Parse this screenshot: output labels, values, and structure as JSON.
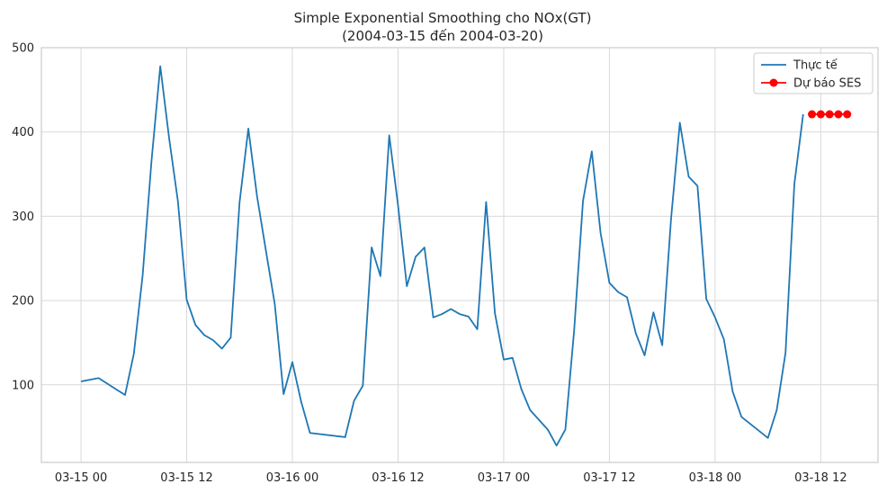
{
  "chart_data": {
    "type": "line",
    "title": "Simple Exponential Smoothing cho NOx(GT)",
    "subtitle": "(2004-03-15 đến 2004-03-20)",
    "xlabel": "",
    "ylabel": "",
    "grid": true,
    "legend_position": "top-right",
    "x_ticks": [
      "03-15 00",
      "03-15 12",
      "03-16 00",
      "03-16 12",
      "03-17 00",
      "03-17 12",
      "03-18 00",
      "03-18 12"
    ],
    "y_ticks": [
      100,
      200,
      300,
      400,
      500
    ],
    "xlim_hours": [
      -4.5,
      90.5
    ],
    "ylim": [
      8,
      500
    ],
    "series": [
      {
        "name": "Thực tế",
        "color": "#1f77b4",
        "style": "line",
        "points": [
          [
            0,
            104
          ],
          [
            2,
            108
          ],
          [
            5,
            88
          ],
          [
            6,
            137
          ],
          [
            7,
            230
          ],
          [
            8,
            365
          ],
          [
            9,
            478
          ],
          [
            10,
            393
          ],
          [
            11,
            318
          ],
          [
            12,
            201
          ],
          [
            13,
            171
          ],
          [
            14,
            159
          ],
          [
            15,
            153
          ],
          [
            16,
            143
          ],
          [
            17,
            156
          ],
          [
            18,
            316
          ],
          [
            19,
            404
          ],
          [
            20,
            323
          ],
          [
            21,
            259
          ],
          [
            22,
            196
          ],
          [
            23,
            89
          ],
          [
            24,
            127
          ],
          [
            25,
            80
          ],
          [
            26,
            43
          ],
          [
            30,
            38
          ],
          [
            31,
            81
          ],
          [
            32,
            99
          ],
          [
            33,
            263
          ],
          [
            34,
            229
          ],
          [
            35,
            396
          ],
          [
            36,
            313
          ],
          [
            37,
            217
          ],
          [
            38,
            252
          ],
          [
            39,
            263
          ],
          [
            40,
            180
          ],
          [
            41,
            184
          ],
          [
            42,
            190
          ],
          [
            43,
            184
          ],
          [
            44,
            181
          ],
          [
            45,
            166
          ],
          [
            46,
            317
          ],
          [
            47,
            185
          ],
          [
            48,
            130
          ],
          [
            49,
            132
          ],
          [
            50,
            95
          ],
          [
            51,
            70
          ],
          [
            53,
            47
          ],
          [
            54,
            28
          ],
          [
            55,
            47
          ],
          [
            56,
            165
          ],
          [
            57,
            318
          ],
          [
            58,
            377
          ],
          [
            59,
            280
          ],
          [
            60,
            221
          ],
          [
            61,
            210
          ],
          [
            62,
            204
          ],
          [
            63,
            161
          ],
          [
            64,
            135
          ],
          [
            65,
            186
          ],
          [
            66,
            147
          ],
          [
            67,
            297
          ],
          [
            68,
            411
          ],
          [
            69,
            347
          ],
          [
            70,
            336
          ],
          [
            71,
            202
          ],
          [
            72,
            180
          ],
          [
            73,
            154
          ],
          [
            74,
            92
          ],
          [
            75,
            62
          ],
          [
            78,
            37
          ],
          [
            79,
            70
          ],
          [
            80,
            138
          ],
          [
            81,
            338
          ],
          [
            82,
            421
          ]
        ]
      },
      {
        "name": "Dự báo SES",
        "color": "#ff0000",
        "style": "line-marker",
        "points": [
          [
            83,
            421
          ],
          [
            84,
            421
          ],
          [
            85,
            421
          ],
          [
            86,
            421
          ],
          [
            87,
            421
          ]
        ]
      }
    ]
  }
}
